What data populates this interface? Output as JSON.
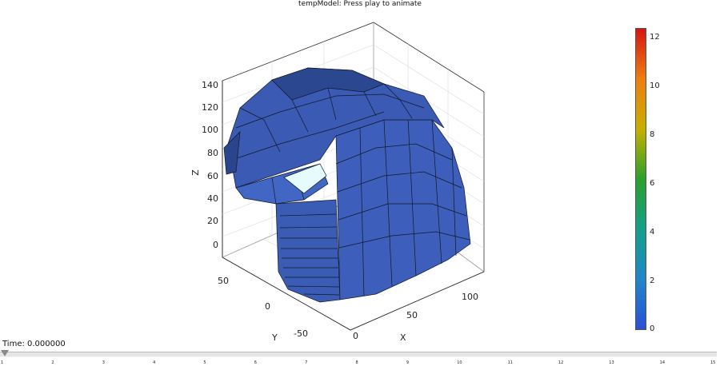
{
  "title": "tempModel: Press play to animate",
  "axes": {
    "z_label": "Z",
    "y_label": "Y",
    "x_label": "X",
    "z_ticks": [
      "140",
      "120",
      "100",
      "80",
      "60",
      "40",
      "20",
      "0"
    ],
    "y_ticks": [
      "50",
      "0",
      "-50"
    ],
    "x_ticks": [
      "0",
      "50",
      "100"
    ]
  },
  "colorbar": {
    "ticks": [
      "12",
      "10",
      "8",
      "6",
      "4",
      "2",
      "0"
    ],
    "min": 0,
    "max": 12.5,
    "colors": [
      "#2b4fd6",
      "#1f86c9",
      "#13a08a",
      "#2aa02a",
      "#c7b000",
      "#f07d10",
      "#d41515"
    ]
  },
  "mesh_colors": {
    "face": "#3c5db8",
    "face_dark": "#2c4a93",
    "face_light": "#4a6fc9",
    "hot_spot": "#e6fbfc",
    "edge": "#111827"
  },
  "time": {
    "label": "Time: 0.000000"
  },
  "slider": {
    "ticks": [
      "1",
      "2",
      "3",
      "4",
      "5",
      "6",
      "7",
      "8",
      "9",
      "10",
      "11",
      "12",
      "13",
      "14",
      "15"
    ]
  }
}
